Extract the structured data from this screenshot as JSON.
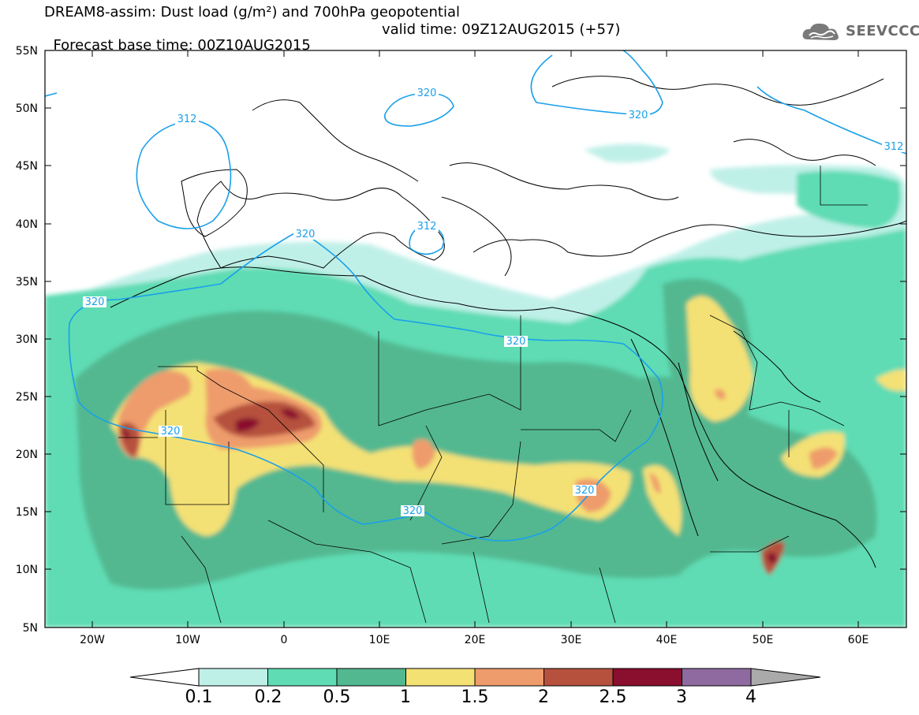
{
  "title": {
    "line1": "DREAM8-assim: Dust load (g/m²) and 700hPa geopotential",
    "line2_base": "Forecast base time: 00Z10AUG2015",
    "line2_valid": "valid time: 09Z12AUG2015 (+57)"
  },
  "logo": {
    "text": "SEEVCCC",
    "icon": "cloud-logo-icon"
  },
  "axes": {
    "lat_labels": [
      "55N",
      "50N",
      "45N",
      "40N",
      "35N",
      "30N",
      "25N",
      "20N",
      "15N",
      "10N",
      "5N"
    ],
    "lon_labels": [
      "20W",
      "10W",
      "0",
      "10E",
      "20E",
      "30E",
      "40E",
      "50E",
      "60E"
    ]
  },
  "colorbar": {
    "labels": [
      "0.1",
      "0.2",
      "0.5",
      "1",
      "1.5",
      "2",
      "2.5",
      "3",
      "4"
    ],
    "colors": [
      "#ffffff",
      "#bff0e8",
      "#5fdcb4",
      "#52b890",
      "#f4e174",
      "#ee9c6c",
      "#b5513d",
      "#8a0e2e",
      "#8e6aa0",
      "#aaaaaa"
    ]
  },
  "contour_labels": [
    "320",
    "320",
    "312",
    "312",
    "312",
    "320",
    "320",
    "320",
    "320",
    "320",
    "320"
  ],
  "map_colors": {
    "land_outline": "#000000",
    "contour_line": "#1aa0ea",
    "ocean": "#ffffff"
  }
}
